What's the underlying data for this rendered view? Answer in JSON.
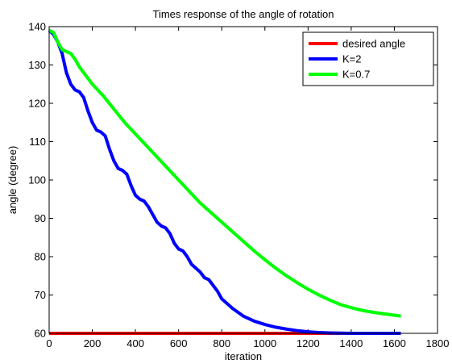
{
  "chart_data": {
    "type": "line",
    "title": "Times response of the angle of rotation",
    "xlabel": "iteration",
    "ylabel": "angle (degree)",
    "xlim": [
      0,
      1800
    ],
    "ylim": [
      60,
      140
    ],
    "xticks": [
      0,
      200,
      400,
      600,
      800,
      1000,
      1200,
      1400,
      1600,
      1800
    ],
    "yticks": [
      60,
      70,
      80,
      90,
      100,
      110,
      120,
      130,
      140
    ],
    "grid": false,
    "legend_position": "top-right",
    "series": [
      {
        "name": "desired angle",
        "color": "#ff0000",
        "x": [
          0,
          1630
        ],
        "y": [
          60,
          60
        ]
      },
      {
        "name": "K=2",
        "color": "#0000ff",
        "x": [
          0,
          20,
          40,
          60,
          80,
          100,
          120,
          140,
          160,
          180,
          200,
          220,
          240,
          260,
          280,
          300,
          320,
          340,
          360,
          380,
          400,
          420,
          440,
          460,
          480,
          500,
          520,
          540,
          560,
          580,
          600,
          620,
          640,
          660,
          680,
          700,
          720,
          740,
          760,
          780,
          800,
          850,
          900,
          950,
          1000,
          1050,
          1100,
          1150,
          1200,
          1250,
          1300,
          1350,
          1400,
          1500,
          1630
        ],
        "y": [
          139,
          138,
          136,
          133,
          128,
          125,
          123.5,
          123,
          121.5,
          118,
          115,
          113,
          112.5,
          111.5,
          108,
          105,
          103,
          102.5,
          101.5,
          98.5,
          96,
          95,
          94.5,
          93,
          91,
          89,
          88,
          87.5,
          86,
          83.5,
          82,
          81.5,
          80,
          78,
          77,
          76,
          74.5,
          74,
          72.5,
          71,
          69,
          66.5,
          64.5,
          63.2,
          62.3,
          61.6,
          61.1,
          60.7,
          60.4,
          60.2,
          60.1,
          60.05,
          60,
          60,
          60
        ]
      },
      {
        "name": "K=0.7",
        "color": "#00ff00",
        "x": [
          0,
          20,
          40,
          60,
          80,
          100,
          120,
          140,
          160,
          180,
          200,
          250,
          300,
          350,
          400,
          450,
          500,
          550,
          600,
          650,
          700,
          750,
          800,
          850,
          900,
          950,
          1000,
          1050,
          1100,
          1150,
          1200,
          1250,
          1300,
          1350,
          1400,
          1450,
          1500,
          1550,
          1630
        ],
        "y": [
          139,
          138.5,
          136,
          134,
          133.5,
          133,
          131.5,
          129.5,
          128,
          126.5,
          125,
          122,
          118.5,
          115,
          112,
          109,
          106,
          103,
          100,
          97,
          94,
          91.5,
          89,
          86.5,
          84,
          81.5,
          79.2,
          77,
          75,
          73.2,
          71.5,
          70,
          68.7,
          67.5,
          66.7,
          66,
          65.5,
          65.1,
          64.5
        ]
      }
    ]
  }
}
